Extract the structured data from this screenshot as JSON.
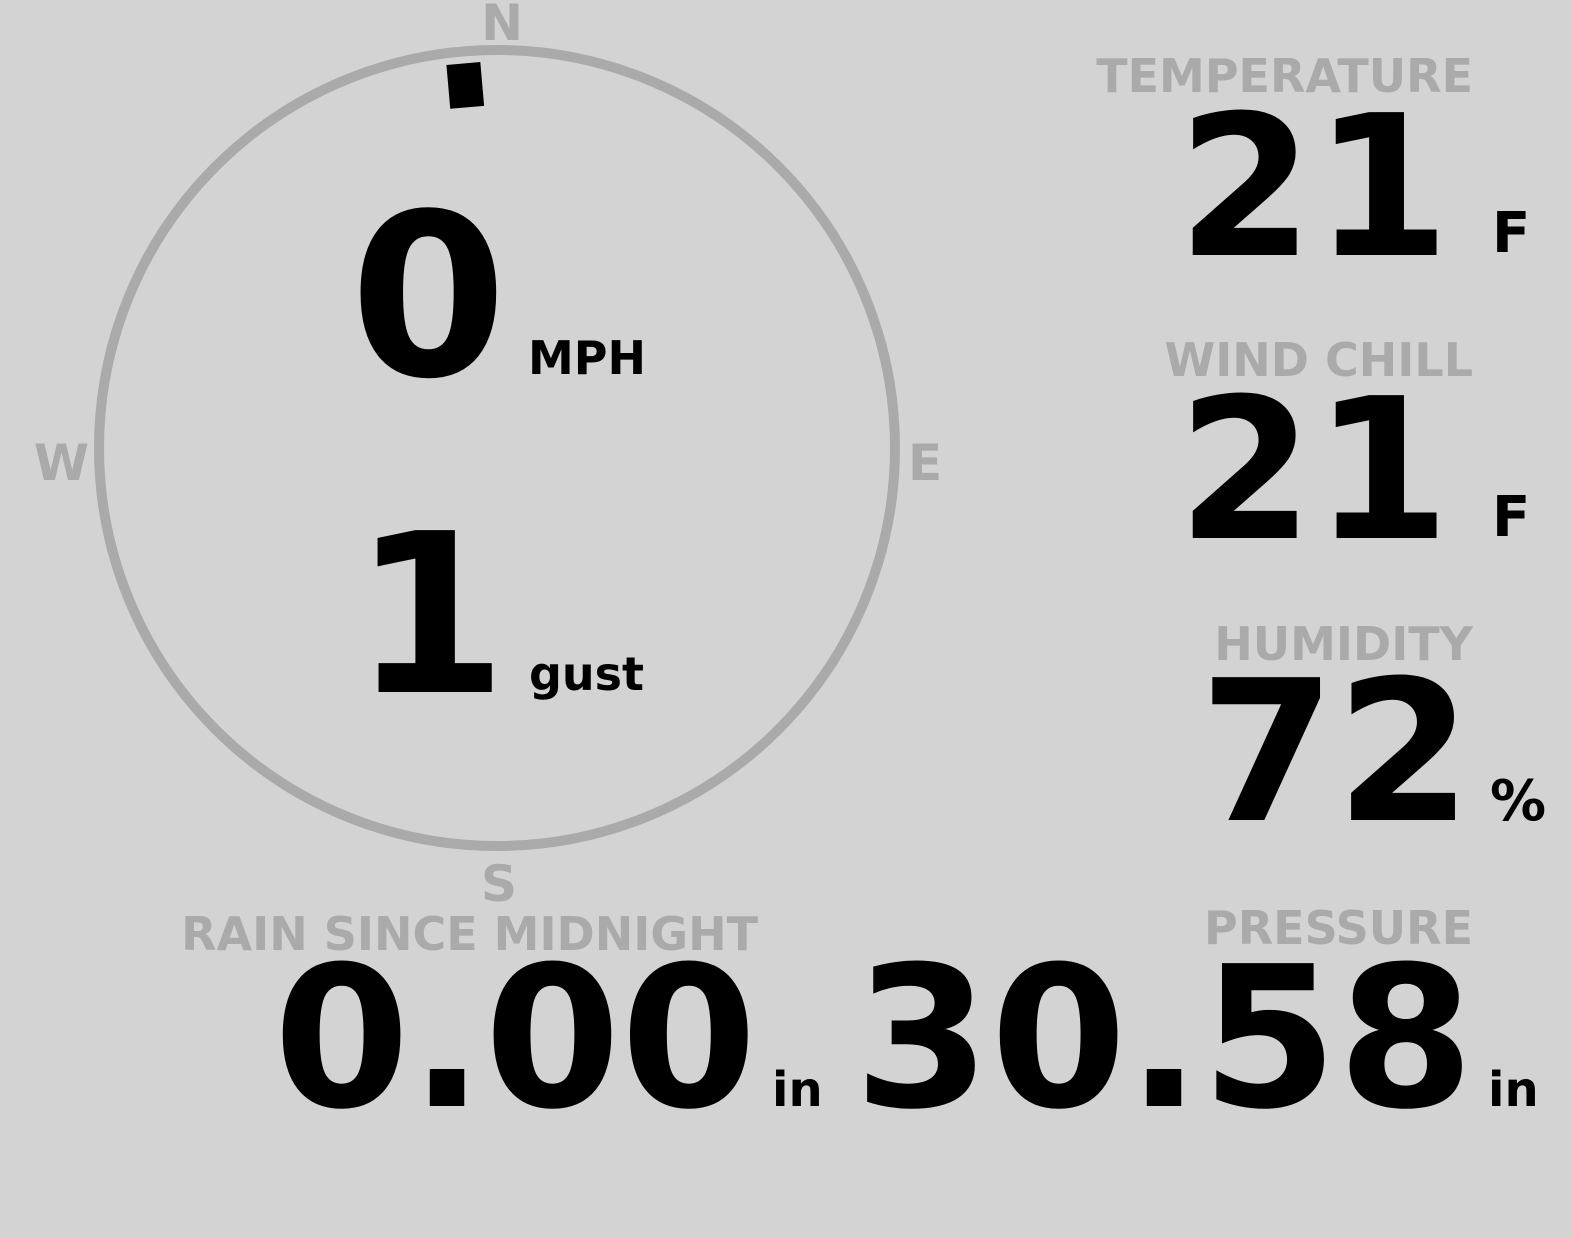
{
  "colors": {
    "background": "#d3d3d3",
    "label": "#aaaaaa",
    "value": "#000000",
    "compass_ring": "#aaaaaa"
  },
  "compass": {
    "north": "N",
    "south": "S",
    "east": "E",
    "west": "W",
    "wind_direction_deg": 355,
    "speed": {
      "value": "0",
      "unit": "MPH"
    },
    "gust": {
      "value": "1",
      "unit": "gust"
    }
  },
  "temperature": {
    "label": "TEMPERATURE",
    "value": "21",
    "unit": "F"
  },
  "wind_chill": {
    "label": "WIND CHILL",
    "value": "21",
    "unit": "F"
  },
  "humidity": {
    "label": "HUMIDITY",
    "value": "72",
    "unit": "%"
  },
  "rain": {
    "label": "RAIN SINCE MIDNIGHT",
    "value": "0.00",
    "unit": "in"
  },
  "pressure": {
    "label": "PRESSURE",
    "value": "30.58",
    "unit": "in"
  }
}
